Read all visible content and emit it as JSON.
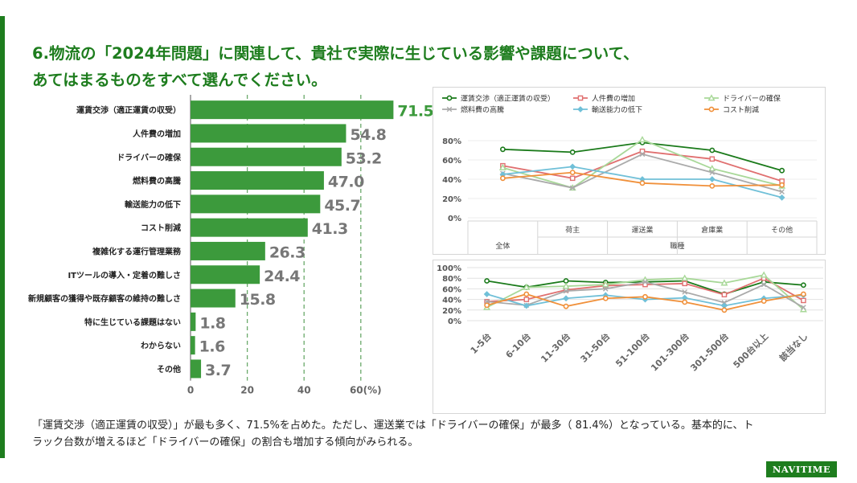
{
  "title": {
    "line1": "6.物流の「2024年問題」に関連して、貴社で実際に生じている影響や課題について、",
    "line2": "あてはまるものをすべて選んでください。"
  },
  "footnote": {
    "line1": "「運賃交渉（適正運賃の収受）」が最も多く、71.5%を占めた。ただし、運送業では「ドライバーの確保」が最多（ 81.4%）となっている。基本的に、ト",
    "line2": "ラック台数が増えるほど「ドライバーの確保」の割合も増加する傾向がみられる。"
  },
  "logo": "NAVITIME",
  "colors": {
    "brand": "#1e7d1e",
    "bar": "#3c9a3c",
    "grid": "#6aaa6a",
    "value_label": "#777777"
  },
  "chart_data": [
    {
      "type": "bar",
      "orientation": "horizontal",
      "categories": [
        "運賃交渉（適正運賃の収受）",
        "人件費の増加",
        "ドライバーの確保",
        "燃料費の高騰",
        "輸送能力の低下",
        "コスト削減",
        "複雑化する運行管理業務",
        "ITツールの導入・定着の難しさ",
        "新規顧客の獲得や既存顧客の維持の難しさ",
        "特に生じている課題はない",
        "わからない",
        "その他"
      ],
      "values": [
        71.5,
        54.8,
        53.2,
        47.0,
        45.7,
        41.3,
        26.3,
        24.4,
        15.8,
        1.8,
        1.6,
        3.7
      ],
      "value_labels": [
        "71.5",
        "54.8",
        "53.2",
        "47.0",
        "45.7",
        "41.3",
        "26.3",
        "24.4",
        "15.8",
        "1.8",
        "1.6",
        "3.7"
      ],
      "xticks": [
        "0",
        "20",
        "40",
        "60(%)"
      ],
      "xlim": [
        0,
        70
      ],
      "grid": "dashed vertical at 20, 40, 60"
    },
    {
      "type": "line",
      "categories": [
        "全体",
        "荷主",
        "運送業",
        "倉庫業",
        "その他"
      ],
      "axis_group_label": "職種",
      "yticks": [
        "0%",
        "20%",
        "40%",
        "60%",
        "80%"
      ],
      "ylim": [
        0,
        90
      ],
      "legend": "top",
      "series": [
        {
          "name": "運賃交渉（適正運賃の収受）",
          "color": "#1a7a1a",
          "marker": "circle",
          "values": [
            71,
            68,
            78,
            70,
            49
          ]
        },
        {
          "name": "人件費の増加",
          "color": "#e07070",
          "marker": "square",
          "values": [
            54,
            41,
            69,
            61,
            38
          ]
        },
        {
          "name": "ドライバーの確保",
          "color": "#a8d898",
          "marker": "triangle",
          "values": [
            52,
            31,
            81,
            51,
            33
          ]
        },
        {
          "name": "燃料費の高騰",
          "color": "#aaaaaa",
          "marker": "x",
          "values": [
            46,
            31,
            66,
            47,
            27
          ]
        },
        {
          "name": "輸送能力の低下",
          "color": "#70c0d8",
          "marker": "diamond",
          "values": [
            45,
            53,
            40,
            40,
            21
          ]
        },
        {
          "name": "コスト削減",
          "color": "#f0903a",
          "marker": "circle",
          "values": [
            41,
            47,
            36,
            33,
            34
          ]
        }
      ]
    },
    {
      "type": "line",
      "categories": [
        "1-5台",
        "6-10台",
        "11-30台",
        "31-50台",
        "51-100台",
        "101-300台",
        "301-500台",
        "500台以上",
        "該当なし"
      ],
      "yticks": [
        "0%",
        "20%",
        "40%",
        "60%",
        "80%",
        "100%"
      ],
      "ylim": [
        0,
        100
      ],
      "series": [
        {
          "name": "運賃交渉（適正運賃の収受）",
          "color": "#1a7a1a",
          "marker": "circle",
          "values": [
            75,
            63,
            75,
            72,
            73,
            75,
            50,
            73,
            67
          ]
        },
        {
          "name": "人件費の増加",
          "color": "#e07070",
          "marker": "square",
          "values": [
            36,
            40,
            58,
            66,
            68,
            70,
            49,
            80,
            38
          ]
        },
        {
          "name": "ドライバーの確保",
          "color": "#a8d898",
          "marker": "triangle",
          "values": [
            25,
            63,
            65,
            68,
            77,
            80,
            71,
            86,
            21
          ]
        },
        {
          "name": "燃料費の高騰",
          "color": "#aaaaaa",
          "marker": "x",
          "values": [
            36,
            29,
            56,
            60,
            73,
            54,
            34,
            68,
            25
          ]
        },
        {
          "name": "輸送能力の低下",
          "color": "#70c0d8",
          "marker": "diamond",
          "values": [
            50,
            28,
            42,
            48,
            40,
            43,
            28,
            42,
            48
          ]
        },
        {
          "name": "コスト削減",
          "color": "#f0903a",
          "marker": "circle",
          "values": [
            29,
            50,
            27,
            42,
            45,
            35,
            20,
            37,
            50
          ]
        }
      ]
    }
  ]
}
